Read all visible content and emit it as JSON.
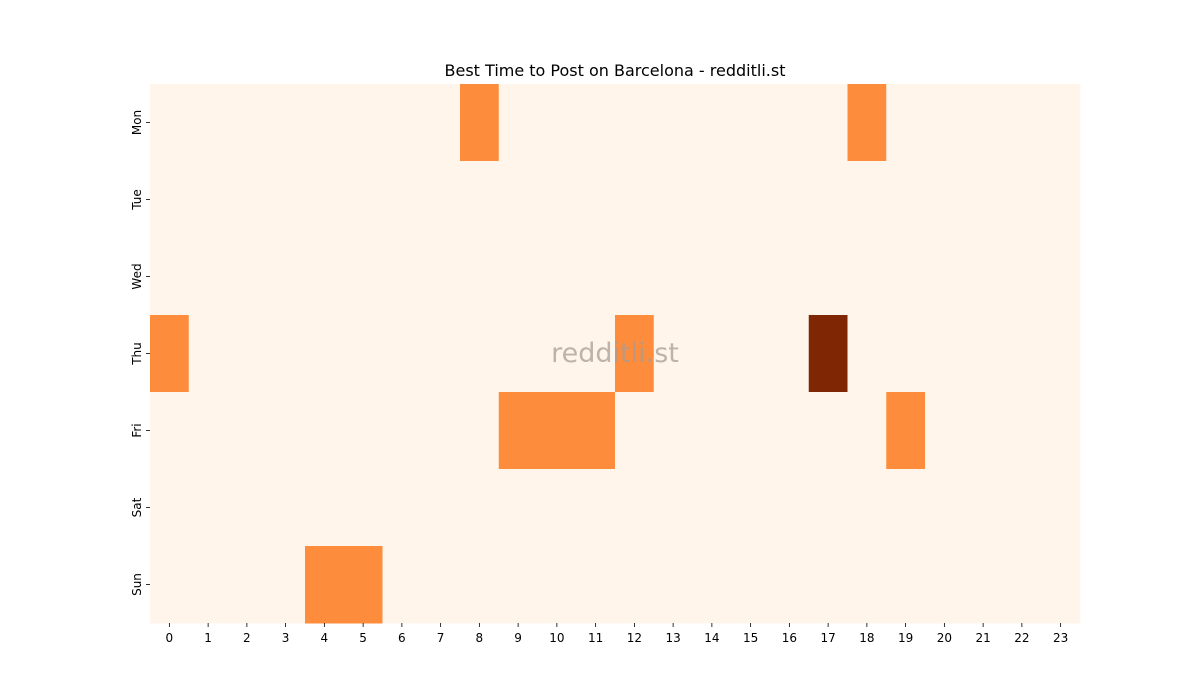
{
  "chart_data": {
    "type": "heatmap",
    "title": "Best Time to Post on Barcelona - redditli.st",
    "watermark": "redditli.st",
    "xlabel": "",
    "ylabel": "",
    "x_categories": [
      "0",
      "1",
      "2",
      "3",
      "4",
      "5",
      "6",
      "7",
      "8",
      "9",
      "10",
      "11",
      "12",
      "13",
      "14",
      "15",
      "16",
      "17",
      "18",
      "19",
      "20",
      "21",
      "22",
      "23"
    ],
    "y_categories": [
      "Mon",
      "Tue",
      "Wed",
      "Thu",
      "Fri",
      "Sat",
      "Sun"
    ],
    "colormap": "Oranges",
    "color_scale": {
      "low": "#fff5eb",
      "mid": "#fd8d3c",
      "high": "#7f2704"
    },
    "value_range": [
      0,
      2
    ],
    "grid": false,
    "legend": "none",
    "values": [
      [
        0,
        0,
        0,
        0,
        0,
        0,
        0,
        0,
        1,
        0,
        0,
        0,
        0,
        0,
        0,
        0,
        0,
        0,
        1,
        0,
        0,
        0,
        0,
        0
      ],
      [
        0,
        0,
        0,
        0,
        0,
        0,
        0,
        0,
        0,
        0,
        0,
        0,
        0,
        0,
        0,
        0,
        0,
        0,
        0,
        0,
        0,
        0,
        0,
        0
      ],
      [
        0,
        0,
        0,
        0,
        0,
        0,
        0,
        0,
        0,
        0,
        0,
        0,
        0,
        0,
        0,
        0,
        0,
        0,
        0,
        0,
        0,
        0,
        0,
        0
      ],
      [
        1,
        0,
        0,
        0,
        0,
        0,
        0,
        0,
        0,
        0,
        0,
        0,
        1,
        0,
        0,
        0,
        0,
        2,
        0,
        0,
        0,
        0,
        0,
        0
      ],
      [
        0,
        0,
        0,
        0,
        0,
        0,
        0,
        0,
        0,
        1,
        1,
        1,
        0,
        0,
        0,
        0,
        0,
        0,
        0,
        1,
        0,
        0,
        0,
        0
      ],
      [
        0,
        0,
        0,
        0,
        0,
        0,
        0,
        0,
        0,
        0,
        0,
        0,
        0,
        0,
        0,
        0,
        0,
        0,
        0,
        0,
        0,
        0,
        0,
        0
      ],
      [
        0,
        0,
        0,
        0,
        1,
        1,
        0,
        0,
        0,
        0,
        0,
        0,
        0,
        0,
        0,
        0,
        0,
        0,
        0,
        0,
        0,
        0,
        0,
        0
      ]
    ]
  }
}
